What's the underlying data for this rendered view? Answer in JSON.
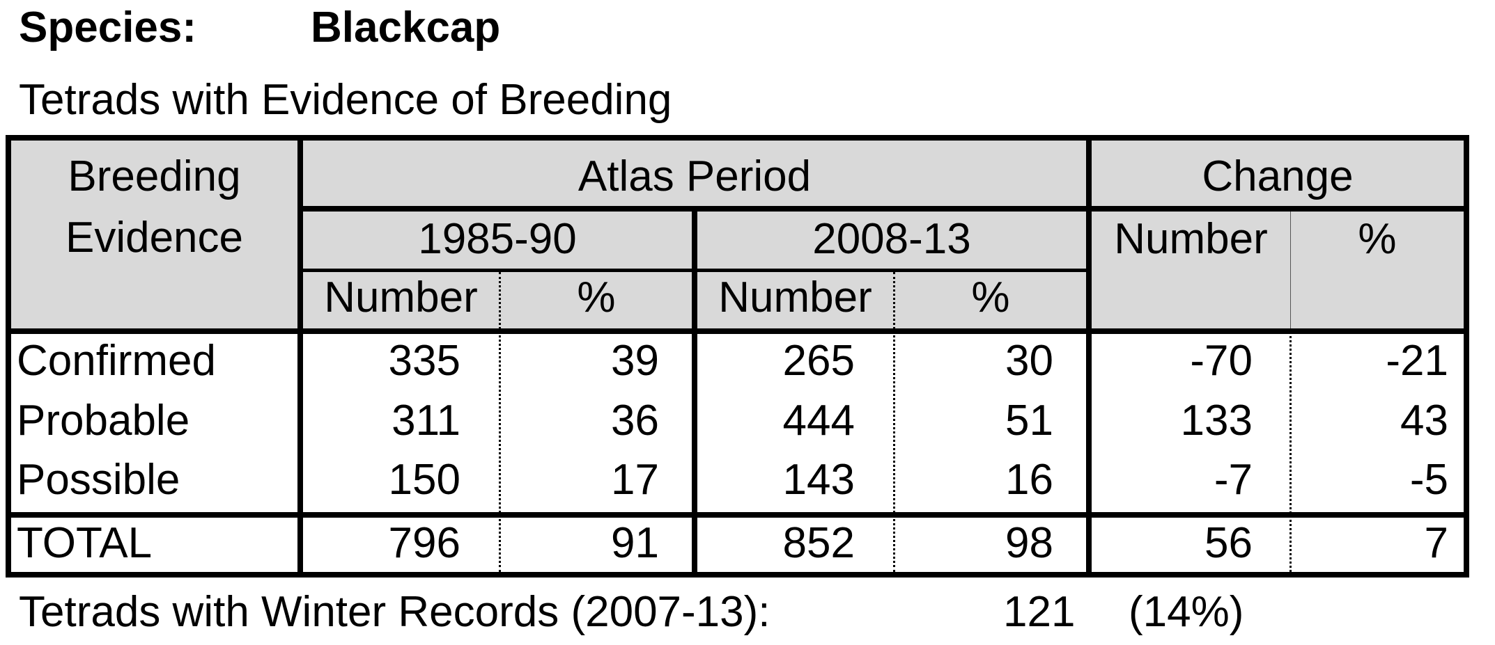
{
  "header": {
    "species_label": "Species:",
    "species_name": "Blackcap",
    "subtitle": "Tetrads with Evidence of Breeding"
  },
  "table": {
    "col_breeding_line1": "Breeding",
    "col_breeding_line2": "Evidence",
    "atlas_period": "Atlas Period",
    "change": "Change",
    "period1": "1985-90",
    "period2": "2008-13",
    "number": "Number",
    "percent": "%",
    "rows": [
      {
        "label": "Confirmed",
        "p1_num": "335",
        "p1_pct": "39",
        "p2_num": "265",
        "p2_pct": "30",
        "ch_num": "-70",
        "ch_pct": "-21"
      },
      {
        "label": "Probable",
        "p1_num": "311",
        "p1_pct": "36",
        "p2_num": "444",
        "p2_pct": "51",
        "ch_num": "133",
        "ch_pct": "43"
      },
      {
        "label": "Possible",
        "p1_num": "150",
        "p1_pct": "17",
        "p2_num": "143",
        "p2_pct": "16",
        "ch_num": "-7",
        "ch_pct": "-5"
      }
    ],
    "total": {
      "label": "TOTAL",
      "p1_num": "796",
      "p1_pct": "91",
      "p2_num": "852",
      "p2_pct": "98",
      "ch_num": "56",
      "ch_pct": "7"
    }
  },
  "winter": {
    "label": "Tetrads with Winter Records (2007-13):",
    "number": "121",
    "percent": "(14%)"
  }
}
